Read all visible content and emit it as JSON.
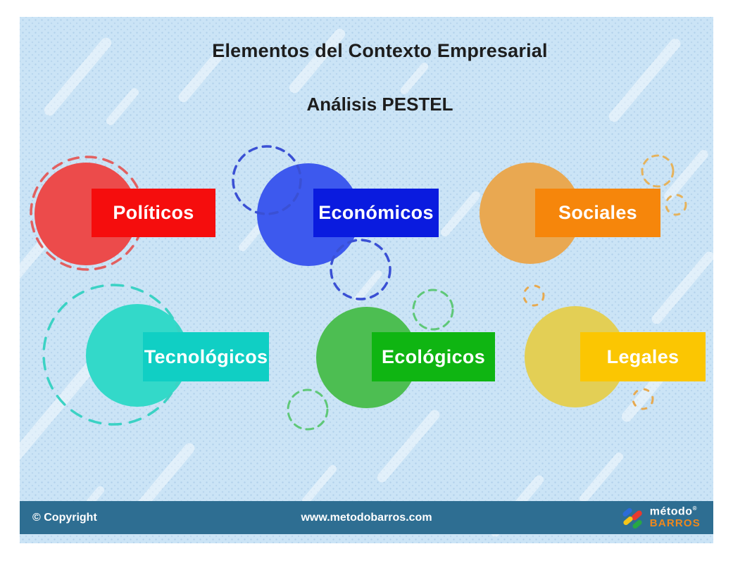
{
  "header": {
    "title": "Elementos del Contexto Empresarial",
    "subtitle": "Análisis PESTEL"
  },
  "items": [
    {
      "label": "Políticos",
      "circle_color": "#ec4b4b",
      "label_bg": "#f50d0d",
      "dash_color": "#e26060"
    },
    {
      "label": "Económicos",
      "circle_color": "#3d59ee",
      "label_bg": "#0a1bdf",
      "dash_color": "#3a50d4"
    },
    {
      "label": "Sociales",
      "circle_color": "#e9a851",
      "label_bg": "#f6860b",
      "dash_color": "#e5b25c"
    },
    {
      "label": "Tecnológicos",
      "circle_color": "#33d9c9",
      "label_bg": "#10cfc4",
      "dash_color": "#3bd2c4"
    },
    {
      "label": "Ecológicos",
      "circle_color": "#4dbe52",
      "label_bg": "#0fb512",
      "dash_color": "#5fc878"
    },
    {
      "label": "Legales",
      "circle_color": "#e3cf55",
      "label_bg": "#fbc602",
      "dash_color": "#e7a94f"
    }
  ],
  "footer": {
    "copyright": "© Copyright",
    "website": "www.metodobarros.com",
    "bar_color": "#2e6e92",
    "logo": {
      "icon": "four-bars-diamond-logo-icon",
      "name_top": "método",
      "registered": "®",
      "name_bottom": "BARROS",
      "name_bottom_color": "#f0881c",
      "bar_colors": {
        "blue": "#2b6bd9",
        "red": "#e8392f",
        "yellow": "#f5c518",
        "green": "#27a844"
      }
    }
  },
  "background": {
    "panel_color": "#cbe4f6",
    "page_color": "#ffffff"
  }
}
